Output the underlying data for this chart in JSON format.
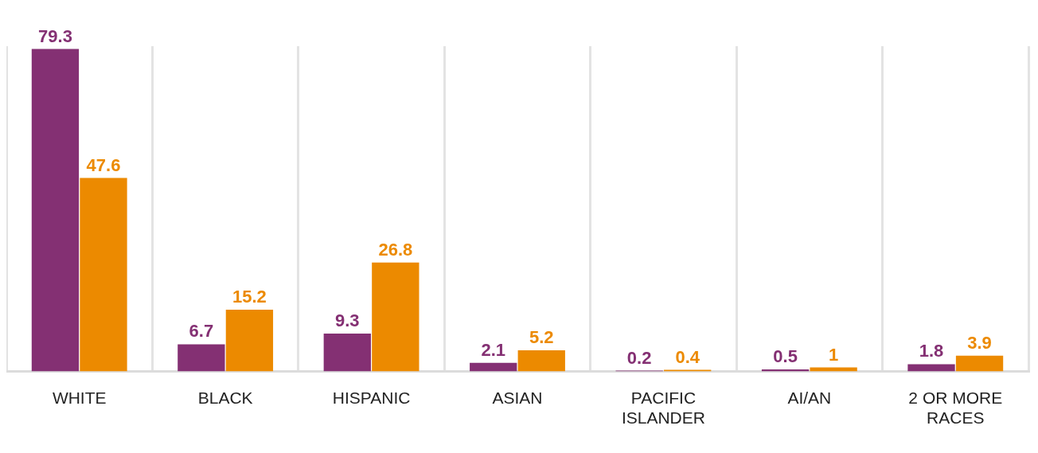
{
  "chart_data": {
    "type": "bar",
    "categories": [
      "WHITE",
      "BLACK",
      "HISPANIC",
      "ASIAN",
      "PACIFIC ISLANDER",
      "AI/AN",
      "2 OR MORE RACES"
    ],
    "series": [
      {
        "color": "#843073",
        "values": [
          79.3,
          6.7,
          9.3,
          2.1,
          0.2,
          0.5,
          1.8
        ]
      },
      {
        "color": "#ec8a00",
        "values": [
          47.6,
          15.2,
          26.8,
          5.2,
          0.4,
          1,
          3.9
        ]
      }
    ],
    "data_labels": true,
    "grid": "x",
    "legend": false
  }
}
